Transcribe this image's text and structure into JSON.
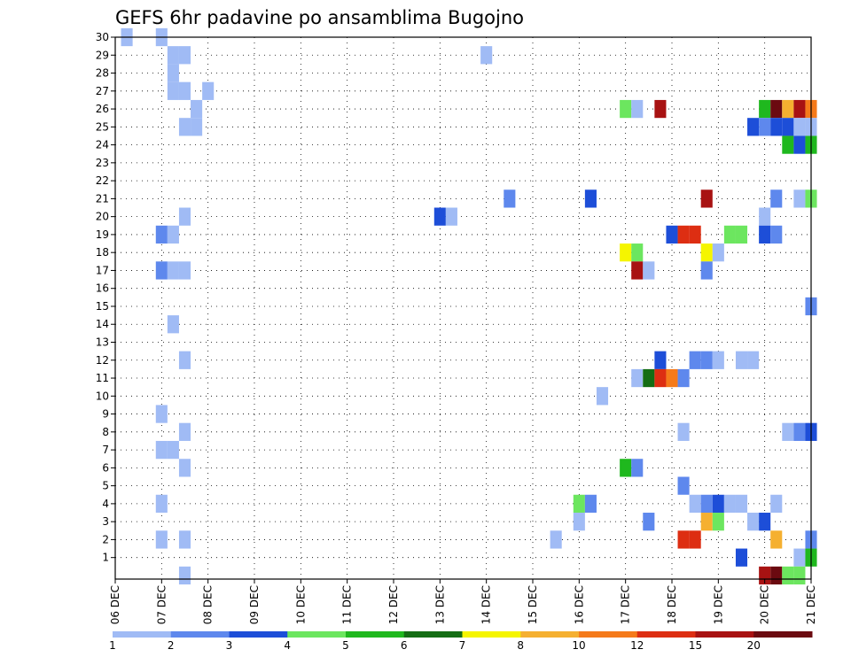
{
  "chart_data": {
    "type": "heatmap",
    "title": "GEFS 6hr padavine po ansamblima Bugojno",
    "y_tick_labels": [
      "1",
      "2",
      "3",
      "4",
      "5",
      "6",
      "7",
      "8",
      "9",
      "10",
      "11",
      "12",
      "13",
      "14",
      "15",
      "16",
      "17",
      "18",
      "19",
      "20",
      "21",
      "22",
      "23",
      "24",
      "25",
      "26",
      "27",
      "28",
      "29",
      "30"
    ],
    "x_tick_labels": [
      "06 DEC",
      "07 DEC",
      "08 DEC",
      "09 DEC",
      "10 DEC",
      "11 DEC",
      "12 DEC",
      "13 DEC",
      "14 DEC",
      "15 DEC",
      "16 DEC",
      "17 DEC",
      "18 DEC",
      "19 DEC",
      "20 DEC",
      "21 DEC"
    ],
    "x_range_days": [
      0,
      15
    ],
    "time_step_hours": 6,
    "grid": true,
    "colorbar_labels": [
      "1",
      "2",
      "3",
      "4",
      "5",
      "6",
      "7",
      "8",
      "10",
      "12",
      "15",
      "20"
    ],
    "colorbar_colors": [
      "#a0bbf5",
      "#5e88ed",
      "#1d4ed8",
      "#6ce65f",
      "#1fb81e",
      "#146d14",
      "#f5f500",
      "#f5b030",
      "#f57a1a",
      "#dd2e12",
      "#a81212",
      "#6b0a10"
    ],
    "cells": [
      {
        "member": 30,
        "day": 0.25,
        "level": 0
      },
      {
        "member": 30,
        "day": 1.0,
        "level": 0
      },
      {
        "member": 29,
        "day": 1.25,
        "level": 0
      },
      {
        "member": 29,
        "day": 1.5,
        "level": 0
      },
      {
        "member": 29,
        "day": 8.0,
        "level": 0
      },
      {
        "member": 28,
        "day": 1.25,
        "level": 0
      },
      {
        "member": 27,
        "day": 1.25,
        "level": 0
      },
      {
        "member": 27,
        "day": 1.5,
        "level": 0
      },
      {
        "member": 27,
        "day": 2.0,
        "level": 0
      },
      {
        "member": 26,
        "day": 1.75,
        "level": 0
      },
      {
        "member": 26,
        "day": 11.0,
        "level": 3
      },
      {
        "member": 26,
        "day": 11.25,
        "level": 0
      },
      {
        "member": 26,
        "day": 11.75,
        "level": 10
      },
      {
        "member": 26,
        "day": 14.0,
        "level": 4
      },
      {
        "member": 26,
        "day": 14.25,
        "level": 11
      },
      {
        "member": 26,
        "day": 14.5,
        "level": 7
      },
      {
        "member": 26,
        "day": 14.75,
        "level": 10
      },
      {
        "member": 26,
        "day": 15.0,
        "level": 8
      },
      {
        "member": 25,
        "day": 1.5,
        "level": 0
      },
      {
        "member": 25,
        "day": 1.75,
        "level": 0
      },
      {
        "member": 25,
        "day": 13.75,
        "level": 2
      },
      {
        "member": 25,
        "day": 14.0,
        "level": 1
      },
      {
        "member": 25,
        "day": 14.25,
        "level": 2
      },
      {
        "member": 25,
        "day": 14.5,
        "level": 2
      },
      {
        "member": 25,
        "day": 14.75,
        "level": 0
      },
      {
        "member": 25,
        "day": 15.0,
        "level": 0
      },
      {
        "member": 24,
        "day": 14.5,
        "level": 4
      },
      {
        "member": 24,
        "day": 14.75,
        "level": 2
      },
      {
        "member": 24,
        "day": 15.0,
        "level": 4
      },
      {
        "member": 21,
        "day": 8.5,
        "level": 1
      },
      {
        "member": 21,
        "day": 10.25,
        "level": 2
      },
      {
        "member": 21,
        "day": 12.75,
        "level": 10
      },
      {
        "member": 21,
        "day": 14.25,
        "level": 1
      },
      {
        "member": 21,
        "day": 14.75,
        "level": 0
      },
      {
        "member": 21,
        "day": 15.0,
        "level": 3
      },
      {
        "member": 20,
        "day": 1.5,
        "level": 0
      },
      {
        "member": 20,
        "day": 7.0,
        "level": 2
      },
      {
        "member": 20,
        "day": 7.25,
        "level": 0
      },
      {
        "member": 20,
        "day": 14.0,
        "level": 0
      },
      {
        "member": 19,
        "day": 1.0,
        "level": 1
      },
      {
        "member": 19,
        "day": 1.25,
        "level": 0
      },
      {
        "member": 19,
        "day": 12.0,
        "level": 2
      },
      {
        "member": 19,
        "day": 12.25,
        "level": 9
      },
      {
        "member": 19,
        "day": 12.5,
        "level": 9
      },
      {
        "member": 19,
        "day": 13.25,
        "level": 3
      },
      {
        "member": 19,
        "day": 13.5,
        "level": 3
      },
      {
        "member": 19,
        "day": 14.0,
        "level": 2
      },
      {
        "member": 19,
        "day": 14.25,
        "level": 1
      },
      {
        "member": 18,
        "day": 11.0,
        "level": 6
      },
      {
        "member": 18,
        "day": 11.25,
        "level": 3
      },
      {
        "member": 18,
        "day": 12.75,
        "level": 6
      },
      {
        "member": 18,
        "day": 13.0,
        "level": 0
      },
      {
        "member": 17,
        "day": 1.0,
        "level": 1
      },
      {
        "member": 17,
        "day": 1.25,
        "level": 0
      },
      {
        "member": 17,
        "day": 1.5,
        "level": 0
      },
      {
        "member": 17,
        "day": 11.25,
        "level": 10
      },
      {
        "member": 17,
        "day": 11.5,
        "level": 0
      },
      {
        "member": 17,
        "day": 12.75,
        "level": 1
      },
      {
        "member": 15,
        "day": 15.0,
        "level": 1
      },
      {
        "member": 14,
        "day": 1.25,
        "level": 0
      },
      {
        "member": 12,
        "day": 1.5,
        "level": 0
      },
      {
        "member": 12,
        "day": 11.75,
        "level": 2
      },
      {
        "member": 12,
        "day": 12.5,
        "level": 1
      },
      {
        "member": 12,
        "day": 12.75,
        "level": 1
      },
      {
        "member": 12,
        "day": 13.0,
        "level": 0
      },
      {
        "member": 12,
        "day": 13.5,
        "level": 0
      },
      {
        "member": 12,
        "day": 13.75,
        "level": 0
      },
      {
        "member": 11,
        "day": 11.25,
        "level": 0
      },
      {
        "member": 11,
        "day": 11.5,
        "level": 5
      },
      {
        "member": 11,
        "day": 11.75,
        "level": 9
      },
      {
        "member": 11,
        "day": 12.0,
        "level": 8
      },
      {
        "member": 11,
        "day": 12.25,
        "level": 1
      },
      {
        "member": 10,
        "day": 10.5,
        "level": 0
      },
      {
        "member": 9,
        "day": 1.0,
        "level": 0
      },
      {
        "member": 8,
        "day": 1.5,
        "level": 0
      },
      {
        "member": 8,
        "day": 12.25,
        "level": 0
      },
      {
        "member": 8,
        "day": 14.5,
        "level": 0
      },
      {
        "member": 8,
        "day": 14.75,
        "level": 1
      },
      {
        "member": 8,
        "day": 15.0,
        "level": 2
      },
      {
        "member": 7,
        "day": 1.0,
        "level": 0
      },
      {
        "member": 7,
        "day": 1.25,
        "level": 0
      },
      {
        "member": 6,
        "day": 1.5,
        "level": 0
      },
      {
        "member": 6,
        "day": 11.0,
        "level": 4
      },
      {
        "member": 6,
        "day": 11.25,
        "level": 1
      },
      {
        "member": 5,
        "day": 12.25,
        "level": 1
      },
      {
        "member": 4,
        "day": 1.0,
        "level": 0
      },
      {
        "member": 4,
        "day": 10.0,
        "level": 3
      },
      {
        "member": 4,
        "day": 10.25,
        "level": 1
      },
      {
        "member": 4,
        "day": 12.5,
        "level": 0
      },
      {
        "member": 4,
        "day": 12.75,
        "level": 1
      },
      {
        "member": 4,
        "day": 13.0,
        "level": 2
      },
      {
        "member": 4,
        "day": 13.25,
        "level": 0
      },
      {
        "member": 4,
        "day": 13.5,
        "level": 0
      },
      {
        "member": 4,
        "day": 14.25,
        "level": 0
      },
      {
        "member": 3,
        "day": 10.0,
        "level": 0
      },
      {
        "member": 3,
        "day": 11.5,
        "level": 1
      },
      {
        "member": 3,
        "day": 12.75,
        "level": 7
      },
      {
        "member": 3,
        "day": 13.0,
        "level": 3
      },
      {
        "member": 3,
        "day": 13.75,
        "level": 0
      },
      {
        "member": 3,
        "day": 14.0,
        "level": 2
      },
      {
        "member": 2,
        "day": 1.0,
        "level": 0
      },
      {
        "member": 2,
        "day": 1.5,
        "level": 0
      },
      {
        "member": 2,
        "day": 9.5,
        "level": 0
      },
      {
        "member": 2,
        "day": 12.25,
        "level": 9
      },
      {
        "member": 2,
        "day": 12.5,
        "level": 9
      },
      {
        "member": 2,
        "day": 14.25,
        "level": 7
      },
      {
        "member": 2,
        "day": 15.0,
        "level": 1
      },
      {
        "member": 1,
        "day": 13.5,
        "level": 2
      },
      {
        "member": 1,
        "day": 14.75,
        "level": 0
      },
      {
        "member": 1,
        "day": 15.0,
        "level": 4
      },
      {
        "member": 0,
        "day": 1.5,
        "level": 0
      },
      {
        "member": 0,
        "day": 14.0,
        "level": 10
      },
      {
        "member": 0,
        "day": 14.25,
        "level": 11
      },
      {
        "member": 0,
        "day": 14.5,
        "level": 3
      },
      {
        "member": 0,
        "day": 14.75,
        "level": 3
      }
    ]
  }
}
